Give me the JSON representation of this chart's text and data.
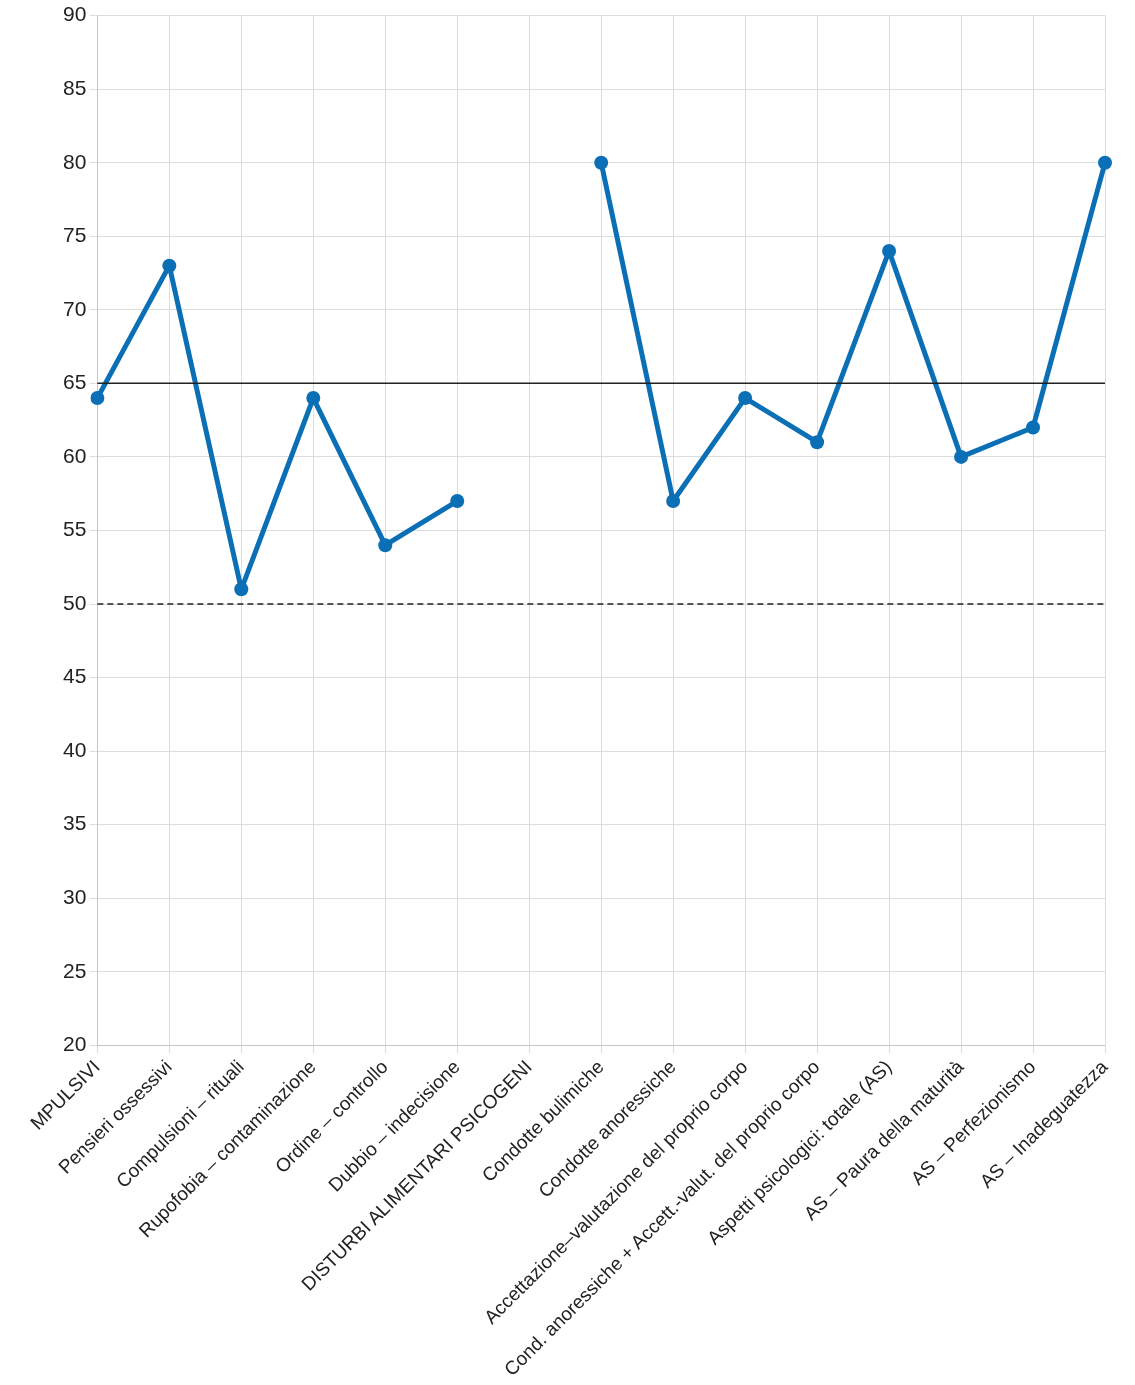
{
  "chart_data": {
    "type": "line",
    "categories": [
      "MPULSIVI",
      "Pensieri ossessivi",
      "Compulsioni – rituali",
      "Rupofobia – contaminazione",
      "Ordine – controllo",
      "Dubbio – indecisione",
      "DISTURBI ALIMENTARI PSICOGENI",
      "Condotte bulimiche",
      "Condotte anoressiche",
      "Accettazione–valutazione del proprio corpo",
      "Cond. anoressiche + Accett.-valut. del proprio corpo",
      "Aspetti psicologici: totale (AS)",
      "AS – Paura della maturità",
      "AS – Perfezionismo",
      "AS – Inadeguatezza"
    ],
    "series": [
      {
        "color": "#0b6fb5",
        "values": [
          64,
          73,
          51,
          64,
          54,
          57,
          null,
          80,
          57,
          64,
          61,
          74,
          60,
          62,
          80
        ]
      }
    ],
    "ylim": [
      20,
      90
    ],
    "yticks": [
      20,
      25,
      30,
      35,
      40,
      45,
      50,
      55,
      60,
      65,
      70,
      75,
      80,
      85,
      90
    ],
    "grid": true,
    "legend": false,
    "marker": "circle",
    "line_style": "solid",
    "ref_lines": [
      {
        "axis": "y",
        "value": 65,
        "color": "#222222",
        "line_style": "solid"
      },
      {
        "axis": "y",
        "value": 50,
        "color": "#222222",
        "line_style": "dashed"
      }
    ]
  }
}
